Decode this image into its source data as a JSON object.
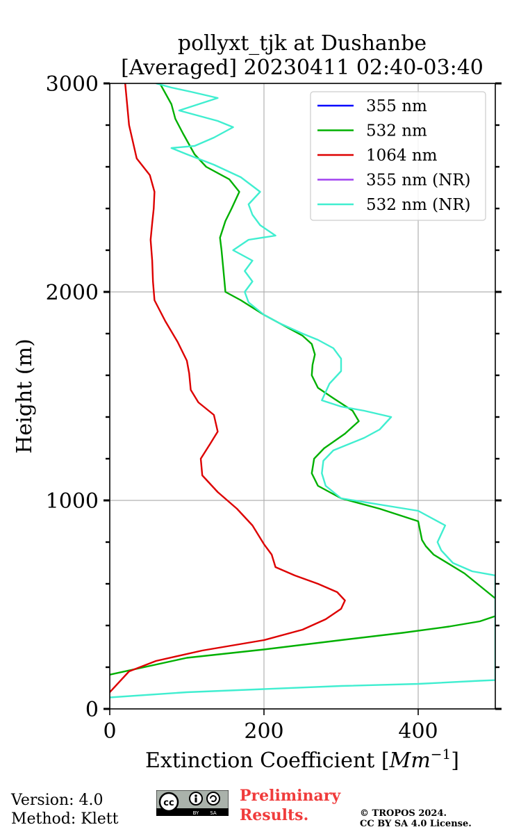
{
  "chart_data": {
    "type": "line",
    "title_line1": "pollyxt_tjk at Dushanbe",
    "title_line2": "[Averaged] 20230411 02:40-03:40",
    "xlabel_text": "Extinction Coefficient [",
    "xlabel_unit": "Mm",
    "xlabel_exp": "−1",
    "xlabel_close": "]",
    "ylabel": "Height (m)",
    "xlim": [
      0,
      500
    ],
    "ylim": [
      0,
      3000
    ],
    "xticks": [
      0,
      200,
      400
    ],
    "yticks": [
      0,
      1000,
      2000,
      3000
    ],
    "grid": true,
    "legend_position": "top-right",
    "series": [
      {
        "name": "355 nm",
        "color": "#0000ff",
        "points": []
      },
      {
        "name": "532 nm",
        "color": "#00b000",
        "points": [
          [
            -5,
            160
          ],
          [
            100,
            245
          ],
          [
            200,
            285
          ],
          [
            300,
            330
          ],
          [
            380,
            365
          ],
          [
            440,
            395
          ],
          [
            480,
            420
          ],
          [
            500,
            445
          ],
          [
            520,
            470
          ],
          [
            460,
            650
          ],
          [
            420,
            740
          ],
          [
            410,
            780
          ],
          [
            405,
            810
          ],
          [
            400,
            900
          ],
          [
            350,
            960
          ],
          [
            300,
            1010
          ],
          [
            270,
            1070
          ],
          [
            262,
            1130
          ],
          [
            265,
            1200
          ],
          [
            278,
            1250
          ],
          [
            305,
            1320
          ],
          [
            323,
            1380
          ],
          [
            315,
            1430
          ],
          [
            290,
            1490
          ],
          [
            270,
            1540
          ],
          [
            262,
            1600
          ],
          [
            263,
            1650
          ],
          [
            266,
            1700
          ],
          [
            262,
            1750
          ],
          [
            250,
            1790
          ],
          [
            230,
            1830
          ],
          [
            200,
            1890
          ],
          [
            170,
            1960
          ],
          [
            150,
            2000
          ],
          [
            148,
            2080
          ],
          [
            145,
            2200
          ],
          [
            143,
            2260
          ],
          [
            150,
            2340
          ],
          [
            158,
            2400
          ],
          [
            168,
            2480
          ],
          [
            155,
            2540
          ],
          [
            125,
            2600
          ],
          [
            110,
            2660
          ],
          [
            95,
            2760
          ],
          [
            85,
            2830
          ],
          [
            80,
            2900
          ],
          [
            65,
            3000
          ]
        ]
      },
      {
        "name": "1064 nm",
        "color": "#dd0000",
        "points": [
          [
            0,
            80
          ],
          [
            25,
            180
          ],
          [
            60,
            230
          ],
          [
            120,
            280
          ],
          [
            200,
            330
          ],
          [
            250,
            380
          ],
          [
            280,
            430
          ],
          [
            300,
            480
          ],
          [
            305,
            520
          ],
          [
            295,
            560
          ],
          [
            270,
            600
          ],
          [
            240,
            640
          ],
          [
            215,
            680
          ],
          [
            210,
            740
          ],
          [
            200,
            790
          ],
          [
            185,
            880
          ],
          [
            165,
            960
          ],
          [
            140,
            1040
          ],
          [
            120,
            1120
          ],
          [
            118,
            1200
          ],
          [
            130,
            1270
          ],
          [
            140,
            1330
          ],
          [
            135,
            1410
          ],
          [
            115,
            1470
          ],
          [
            105,
            1530
          ],
          [
            103,
            1610
          ],
          [
            100,
            1670
          ],
          [
            88,
            1760
          ],
          [
            72,
            1860
          ],
          [
            58,
            1960
          ],
          [
            56,
            2050
          ],
          [
            55,
            2150
          ],
          [
            53,
            2250
          ],
          [
            55,
            2330
          ],
          [
            57,
            2400
          ],
          [
            58,
            2480
          ],
          [
            52,
            2560
          ],
          [
            35,
            2640
          ],
          [
            25,
            2800
          ],
          [
            20,
            3000
          ]
        ]
      },
      {
        "name": "355 nm (NR)",
        "color": "#a040f0",
        "points": []
      },
      {
        "name": "532 nm (NR)",
        "color": "#40eed0",
        "points": [
          [
            0,
            55
          ],
          [
            100,
            80
          ],
          [
            200,
            95
          ],
          [
            300,
            110
          ],
          [
            400,
            120
          ],
          [
            480,
            135
          ],
          [
            500,
            138
          ],
          [
            500,
            640
          ],
          [
            470,
            660
          ],
          [
            445,
            700
          ],
          [
            430,
            760
          ],
          [
            425,
            800
          ],
          [
            435,
            880
          ],
          [
            400,
            950
          ],
          [
            350,
            980
          ],
          [
            300,
            1010
          ],
          [
            280,
            1070
          ],
          [
            275,
            1130
          ],
          [
            277,
            1190
          ],
          [
            290,
            1240
          ],
          [
            330,
            1300
          ],
          [
            350,
            1340
          ],
          [
            365,
            1400
          ],
          [
            330,
            1430
          ],
          [
            300,
            1450
          ],
          [
            275,
            1480
          ],
          [
            285,
            1560
          ],
          [
            300,
            1620
          ],
          [
            300,
            1680
          ],
          [
            290,
            1730
          ],
          [
            270,
            1770
          ],
          [
            250,
            1800
          ],
          [
            220,
            1850
          ],
          [
            200,
            1890
          ],
          [
            180,
            1950
          ],
          [
            175,
            2000
          ],
          [
            185,
            2050
          ],
          [
            175,
            2100
          ],
          [
            185,
            2150
          ],
          [
            160,
            2200
          ],
          [
            180,
            2250
          ],
          [
            215,
            2270
          ],
          [
            195,
            2320
          ],
          [
            185,
            2370
          ],
          [
            180,
            2420
          ],
          [
            195,
            2480
          ],
          [
            170,
            2550
          ],
          [
            135,
            2610
          ],
          [
            100,
            2660
          ],
          [
            80,
            2690
          ],
          [
            110,
            2700
          ],
          [
            135,
            2740
          ],
          [
            160,
            2790
          ],
          [
            140,
            2820
          ],
          [
            110,
            2850
          ],
          [
            90,
            2870
          ],
          [
            115,
            2900
          ],
          [
            140,
            2930
          ],
          [
            105,
            2960
          ],
          [
            80,
            2980
          ],
          [
            60,
            3000
          ]
        ]
      }
    ]
  },
  "footer": {
    "version": "Version: 4.0",
    "method": "Method: Klett",
    "preliminary_line1": "Preliminary",
    "preliminary_line2": "Results.",
    "copyright_line1": "© TROPOS 2024.",
    "copyright_line2": "CC BY SA 4.0 License.",
    "cc_badge_text": "cc",
    "cc_by": "BY",
    "cc_sa": "SA"
  },
  "colors": {
    "grid": "#b0b0b0",
    "prelim": "#f03c3c"
  }
}
